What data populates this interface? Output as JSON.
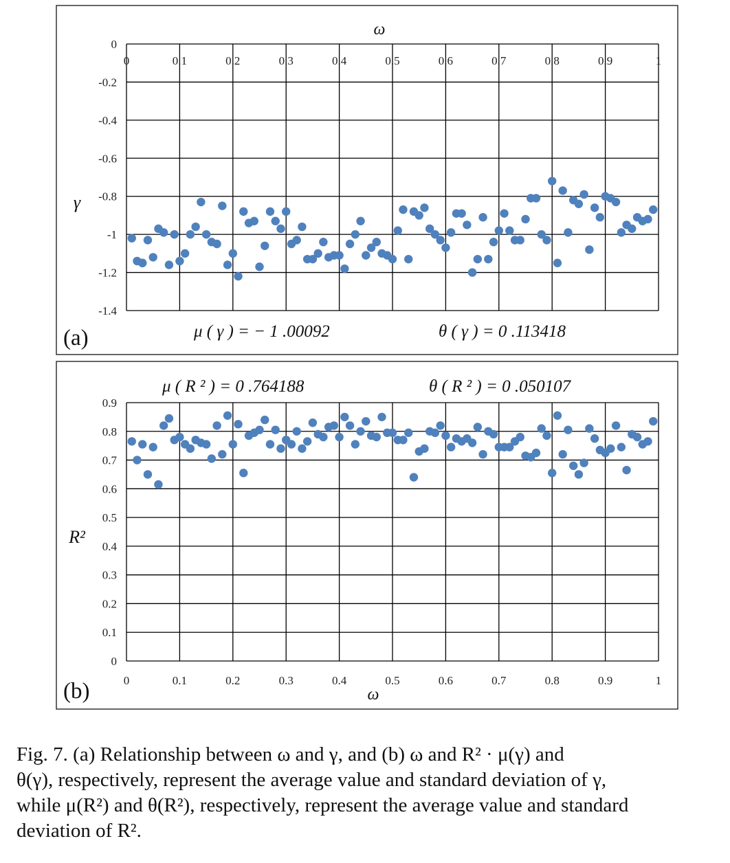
{
  "chart_data": [
    {
      "type": "scatter",
      "panel_label": "(a)",
      "xlabel": "ω",
      "ylabel": "γ",
      "xlim": [
        0,
        1
      ],
      "ylim": [
        -1.4,
        0
      ],
      "x_ticks": [
        "0",
        "0.1",
        "0.2",
        "0.3",
        "0.4",
        "0.5",
        "0.6",
        "0.7",
        "0.8",
        "0.9",
        "1"
      ],
      "y_ticks": [
        "0",
        "-0.2",
        "-0.4",
        "-0.6",
        "-0.8",
        "-1",
        "-1.2",
        "-1.4"
      ],
      "x_axis_position": "top",
      "grid": true,
      "marker_color": "#4f81bd",
      "stat_mean": "μ ( γ ) = − 1 .00092",
      "stat_std": "θ ( γ ) = 0 .113418",
      "x": [
        0.01,
        0.02,
        0.03,
        0.03,
        0.04,
        0.05,
        0.06,
        0.07,
        0.08,
        0.09,
        0.1,
        0.11,
        0.12,
        0.13,
        0.14,
        0.15,
        0.16,
        0.17,
        0.18,
        0.19,
        0.2,
        0.21,
        0.22,
        0.23,
        0.24,
        0.25,
        0.26,
        0.27,
        0.28,
        0.29,
        0.3,
        0.31,
        0.32,
        0.33,
        0.34,
        0.35,
        0.36,
        0.37,
        0.38,
        0.39,
        0.4,
        0.41,
        0.42,
        0.43,
        0.44,
        0.45,
        0.46,
        0.47,
        0.48,
        0.49,
        0.5,
        0.51,
        0.52,
        0.53,
        0.54,
        0.55,
        0.56,
        0.57,
        0.58,
        0.59,
        0.6,
        0.61,
        0.62,
        0.63,
        0.64,
        0.65,
        0.66,
        0.67,
        0.68,
        0.69,
        0.7,
        0.71,
        0.72,
        0.73,
        0.74,
        0.75,
        0.76,
        0.77,
        0.78,
        0.79,
        0.8,
        0.81,
        0.82,
        0.83,
        0.84,
        0.85,
        0.86,
        0.87,
        0.88,
        0.89,
        0.9,
        0.91,
        0.92,
        0.93,
        0.94,
        0.95,
        0.96,
        0.97,
        0.98,
        0.99
      ],
      "y": [
        -1.02,
        -1.14,
        -1.15,
        -1.15,
        -1.03,
        -1.12,
        -0.97,
        -0.99,
        -1.16,
        -1.0,
        -1.14,
        -1.1,
        -1.0,
        -0.96,
        -0.83,
        -1.0,
        -1.04,
        -1.05,
        -0.85,
        -1.16,
        -1.1,
        -1.22,
        -0.88,
        -0.94,
        -0.93,
        -1.17,
        -1.06,
        -0.88,
        -0.93,
        -0.97,
        -0.88,
        -1.05,
        -1.03,
        -0.96,
        -1.13,
        -1.13,
        -1.1,
        -1.04,
        -1.12,
        -1.11,
        -1.11,
        -1.18,
        -1.05,
        -1.0,
        -0.93,
        -1.11,
        -1.07,
        -1.04,
        -1.1,
        -1.11,
        -1.13,
        -0.98,
        -0.87,
        -1.13,
        -0.88,
        -0.9,
        -0.86,
        -0.97,
        -1.0,
        -1.03,
        -1.07,
        -0.99,
        -0.89,
        -0.89,
        -0.95,
        -1.2,
        -1.13,
        -0.91,
        -1.13,
        -1.04,
        -0.98,
        -0.89,
        -0.98,
        -1.03,
        -1.03,
        -0.92,
        -0.81,
        -0.81,
        -1.0,
        -1.03,
        -0.72,
        -1.15,
        -0.77,
        -0.99,
        -0.82,
        -0.84,
        -0.79,
        -1.08,
        -0.86,
        -0.91,
        -0.8,
        -0.81,
        -0.83,
        -0.99,
        -0.95,
        -0.97,
        -0.91,
        -0.93,
        -0.92,
        -0.87
      ]
    },
    {
      "type": "scatter",
      "panel_label": "(b)",
      "xlabel": "ω",
      "ylabel": "R²",
      "xlim": [
        0,
        1
      ],
      "ylim": [
        0,
        0.9
      ],
      "x_ticks": [
        "0",
        "0.1",
        "0.2",
        "0.3",
        "0.4",
        "0.5",
        "0.6",
        "0.7",
        "0.8",
        "0.9",
        "1"
      ],
      "y_ticks": [
        "0",
        "0.1",
        "0.2",
        "0.3",
        "0.4",
        "0.5",
        "0.6",
        "0.7",
        "0.8",
        "0.9"
      ],
      "x_axis_position": "bottom",
      "grid": true,
      "marker_color": "#4f81bd",
      "stat_mean": "μ ( R ² ) = 0 .764188",
      "stat_std": "θ ( R ² ) = 0 .050107",
      "x": [
        0.01,
        0.02,
        0.03,
        0.04,
        0.05,
        0.06,
        0.07,
        0.08,
        0.09,
        0.1,
        0.11,
        0.12,
        0.13,
        0.14,
        0.15,
        0.16,
        0.17,
        0.18,
        0.19,
        0.2,
        0.21,
        0.22,
        0.23,
        0.24,
        0.25,
        0.26,
        0.27,
        0.28,
        0.29,
        0.3,
        0.31,
        0.32,
        0.33,
        0.34,
        0.35,
        0.36,
        0.37,
        0.38,
        0.39,
        0.4,
        0.41,
        0.42,
        0.43,
        0.44,
        0.45,
        0.46,
        0.47,
        0.48,
        0.49,
        0.5,
        0.51,
        0.52,
        0.53,
        0.54,
        0.55,
        0.56,
        0.57,
        0.58,
        0.59,
        0.6,
        0.61,
        0.62,
        0.63,
        0.64,
        0.65,
        0.66,
        0.67,
        0.68,
        0.69,
        0.7,
        0.71,
        0.72,
        0.73,
        0.74,
        0.75,
        0.76,
        0.77,
        0.78,
        0.79,
        0.8,
        0.81,
        0.82,
        0.83,
        0.84,
        0.85,
        0.86,
        0.87,
        0.88,
        0.89,
        0.9,
        0.91,
        0.92,
        0.93,
        0.94,
        0.95,
        0.96,
        0.97,
        0.98,
        0.99
      ],
      "y": [
        0.765,
        0.7,
        0.755,
        0.65,
        0.745,
        0.615,
        0.82,
        0.845,
        0.77,
        0.78,
        0.755,
        0.74,
        0.77,
        0.76,
        0.755,
        0.705,
        0.82,
        0.72,
        0.855,
        0.755,
        0.825,
        0.655,
        0.785,
        0.795,
        0.805,
        0.84,
        0.755,
        0.805,
        0.74,
        0.77,
        0.755,
        0.8,
        0.74,
        0.765,
        0.83,
        0.79,
        0.78,
        0.815,
        0.82,
        0.78,
        0.85,
        0.82,
        0.755,
        0.8,
        0.835,
        0.785,
        0.78,
        0.85,
        0.795,
        0.795,
        0.77,
        0.77,
        0.795,
        0.64,
        0.73,
        0.74,
        0.8,
        0.795,
        0.82,
        0.785,
        0.745,
        0.775,
        0.765,
        0.775,
        0.76,
        0.815,
        0.72,
        0.8,
        0.79,
        0.745,
        0.745,
        0.745,
        0.765,
        0.78,
        0.715,
        0.71,
        0.725,
        0.81,
        0.785,
        0.655,
        0.855,
        0.72,
        0.805,
        0.68,
        0.65,
        0.69,
        0.81,
        0.775,
        0.735,
        0.725,
        0.74,
        0.82,
        0.745,
        0.665,
        0.79,
        0.78,
        0.755,
        0.765,
        0.835
      ]
    }
  ],
  "caption": {
    "lines": [
      "Fig. 7.    (a) Relationship between ω and γ, and (b) ω and R² · μ(γ) and",
      "θ(γ), respectively, represent the average value and standard deviation of γ,",
      "while μ(R²) and θ(R²), respectively, represent the average value and standard",
      "deviation of R²."
    ]
  }
}
